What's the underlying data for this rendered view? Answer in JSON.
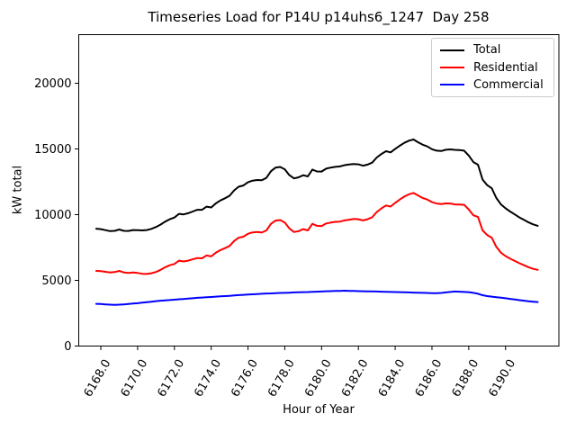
{
  "chart_data": {
    "type": "line",
    "title": "Timeseries Load for P14U p14uhs6_1247  Day 258",
    "xlabel": "Hour of Year",
    "ylabel": "kW total",
    "grid": false,
    "legend_position": "upper right",
    "xlim": [
      6166.8,
      6192.9
    ],
    "ylim": [
      0,
      23700
    ],
    "x_ticks": [
      "6168.0",
      "6170.0",
      "6172.0",
      "6174.0",
      "6176.0",
      "6178.0",
      "6180.0",
      "6182.0",
      "6184.0",
      "6186.0",
      "6188.0",
      "6190.0"
    ],
    "x_tick_values": [
      6168,
      6170,
      6172,
      6174,
      6176,
      6178,
      6180,
      6182,
      6184,
      6186,
      6188,
      6190
    ],
    "y_ticks": [
      "0",
      "5000",
      "10000",
      "15000",
      "20000"
    ],
    "y_tick_values": [
      0,
      5000,
      10000,
      15000,
      20000
    ],
    "x_tick_rotation_deg": 60,
    "x_start": 6167.75,
    "x_step": 0.25,
    "series": [
      {
        "name": "Total",
        "color": "#000000",
        "values": [
          8930,
          8900,
          8820,
          8750,
          8770,
          8870,
          8770,
          8760,
          8830,
          8820,
          8800,
          8830,
          8920,
          9060,
          9250,
          9470,
          9650,
          9780,
          10060,
          10020,
          10110,
          10240,
          10370,
          10370,
          10610,
          10550,
          10860,
          11080,
          11250,
          11440,
          11850,
          12130,
          12220,
          12470,
          12590,
          12640,
          12620,
          12800,
          13310,
          13580,
          13630,
          13450,
          13010,
          12760,
          12840,
          13000,
          12910,
          13430,
          13290,
          13280,
          13500,
          13580,
          13640,
          13670,
          13770,
          13820,
          13860,
          13830,
          13730,
          13810,
          13960,
          14350,
          14610,
          14830,
          14740,
          15010,
          15250,
          15470,
          15630,
          15720,
          15510,
          15320,
          15190,
          14980,
          14870,
          14840,
          14940,
          14970,
          14930,
          14910,
          14870,
          14500,
          14000,
          13800,
          12670,
          12250,
          12010,
          11270,
          10780,
          10490,
          10240,
          10020,
          9790,
          9600,
          9410,
          9260,
          9150
        ]
      },
      {
        "name": "Residential",
        "color": "#ff0000",
        "values": [
          5720,
          5700,
          5650,
          5600,
          5630,
          5720,
          5600,
          5560,
          5600,
          5560,
          5500,
          5490,
          5540,
          5640,
          5800,
          6000,
          6150,
          6250,
          6500,
          6440,
          6500,
          6600,
          6700,
          6680,
          6900,
          6820,
          7100,
          7300,
          7450,
          7620,
          8000,
          8250,
          8320,
          8550,
          8650,
          8680,
          8640,
          8800,
          9300,
          9550,
          9590,
          9400,
          8950,
          8680,
          8750,
          8900,
          8800,
          9300,
          9150,
          9130,
          9330,
          9400,
          9450,
          9470,
          9560,
          9620,
          9670,
          9650,
          9560,
          9650,
          9800,
          10200,
          10470,
          10700,
          10620,
          10900,
          11150,
          11380,
          11550,
          11650,
          11450,
          11270,
          11150,
          10950,
          10850,
          10800,
          10860,
          10850,
          10780,
          10770,
          10750,
          10400,
          9950,
          9820,
          8800,
          8450,
          8250,
          7550,
          7100,
          6850,
          6650,
          6480,
          6300,
          6150,
          6000,
          5880,
          5800
        ]
      },
      {
        "name": "Commercial",
        "color": "#0000ff",
        "values": [
          3210,
          3200,
          3170,
          3150,
          3140,
          3150,
          3170,
          3200,
          3230,
          3260,
          3300,
          3340,
          3380,
          3420,
          3450,
          3470,
          3500,
          3530,
          3560,
          3580,
          3610,
          3640,
          3670,
          3690,
          3710,
          3730,
          3760,
          3780,
          3800,
          3820,
          3850,
          3880,
          3900,
          3920,
          3940,
          3960,
          3980,
          4000,
          4010,
          4030,
          4040,
          4050,
          4060,
          4080,
          4090,
          4100,
          4110,
          4130,
          4140,
          4150,
          4170,
          4180,
          4190,
          4200,
          4210,
          4200,
          4190,
          4180,
          4170,
          4160,
          4160,
          4150,
          4140,
          4130,
          4120,
          4110,
          4100,
          4090,
          4080,
          4070,
          4060,
          4050,
          4040,
          4030,
          4020,
          4040,
          4080,
          4120,
          4150,
          4140,
          4120,
          4100,
          4050,
          3980,
          3870,
          3800,
          3760,
          3720,
          3680,
          3640,
          3590,
          3540,
          3490,
          3450,
          3410,
          3380,
          3350
        ]
      }
    ]
  }
}
